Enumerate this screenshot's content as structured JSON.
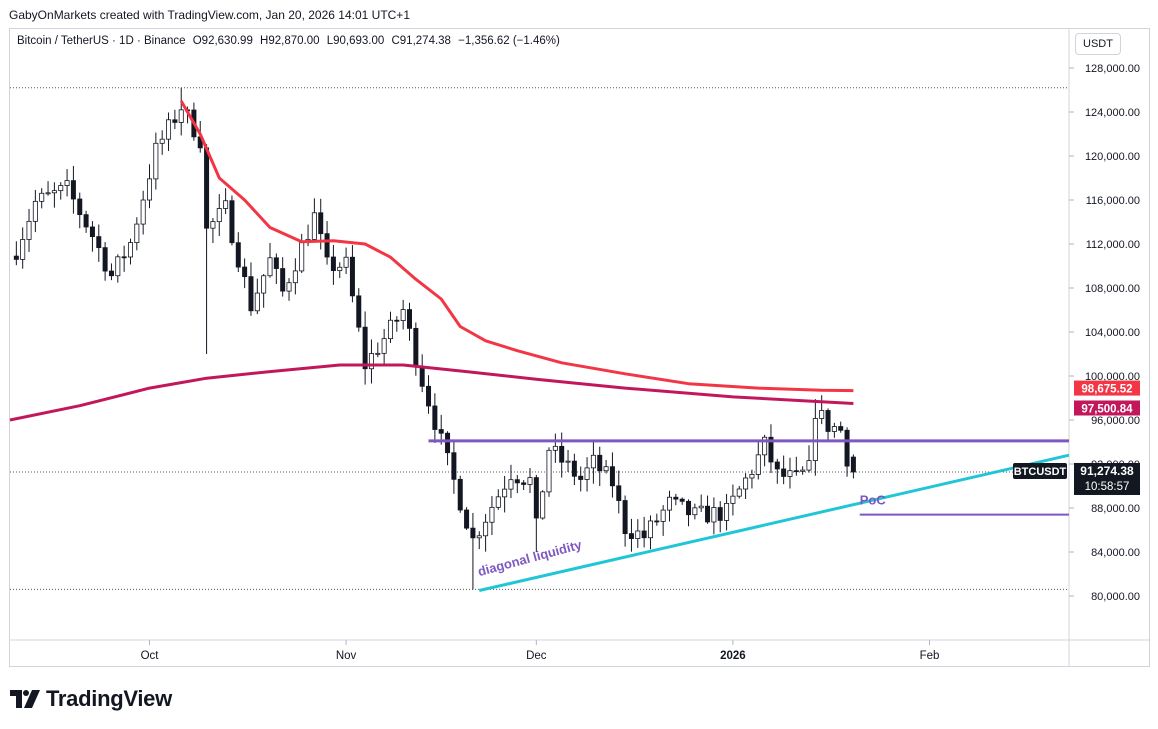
{
  "header": {
    "credit": "GabyOnMarkets created with TradingView.com, Jan 20, 2026 14:01 UTC+1",
    "symbol_line": "Bitcoin / TetherUS · 1D · Binance",
    "open": "O92,630.99",
    "high": "H92,870.00",
    "low": "L90,693.00",
    "close": "C91,274.38",
    "change": "−1,356.62 (−1.46%)"
  },
  "toolbar": {
    "currency": "USDT"
  },
  "brand": {
    "name": "TradingView"
  },
  "colors": {
    "up": "#131722",
    "down": "#131722",
    "up_body": "#ffffff",
    "ema_fast": "#f23645",
    "ema_slow": "#c2185b",
    "level": "#7e57c2",
    "trend": "#20c5d6",
    "annotation": "#7e57c2",
    "price_tag": "#131722"
  },
  "chart_data": {
    "type": "candlestick",
    "y_axis": {
      "min": 76000,
      "max": 130000,
      "ticks": [
        128000,
        124000,
        120000,
        116000,
        112000,
        108000,
        104000,
        100000,
        96000,
        92000,
        88000,
        84000,
        80000
      ],
      "tick_labels": [
        "128,000.00",
        "124,000.00",
        "120,000.00",
        "116,000.00",
        "112,000.00",
        "108,000.00",
        "104,000.00",
        "100,000.00",
        "96,000.00",
        "92,000.00",
        "88,000.00",
        "84,000.00",
        "80,000.00"
      ]
    },
    "x_axis": {
      "start": "2025-09-09",
      "end": "2026-02-23",
      "ticks": [
        {
          "date": "2025-10-01",
          "label": "Oct",
          "bold": false
        },
        {
          "date": "2025-11-01",
          "label": "Nov",
          "bold": false
        },
        {
          "date": "2025-12-01",
          "label": "Dec",
          "bold": false
        },
        {
          "date": "2026-01-01",
          "label": "2026",
          "bold": true
        },
        {
          "date": "2026-02-01",
          "label": "Feb",
          "bold": false
        }
      ]
    },
    "candles_start": "2025-09-10",
    "close_points": [
      [
        "2025-09-10",
        111500
      ],
      [
        "2025-09-13",
        115800
      ],
      [
        "2025-09-18",
        117000
      ],
      [
        "2025-09-22",
        112800
      ],
      [
        "2025-09-25",
        109100
      ],
      [
        "2025-09-28",
        112100
      ],
      [
        "2025-10-02",
        120500
      ],
      [
        "2025-10-06",
        124500
      ],
      [
        "2025-10-09",
        121500
      ],
      [
        "2025-10-10",
        113200
      ],
      [
        "2025-10-13",
        115200
      ],
      [
        "2025-10-17",
        106400
      ],
      [
        "2025-10-20",
        110500
      ],
      [
        "2025-10-22",
        107600
      ],
      [
        "2025-10-27",
        114500
      ],
      [
        "2025-10-29",
        110000
      ],
      [
        "2025-11-01",
        110100
      ],
      [
        "2025-11-04",
        101000
      ],
      [
        "2025-11-07",
        103400
      ],
      [
        "2025-11-10",
        106000
      ],
      [
        "2025-11-13",
        99600
      ],
      [
        "2025-11-17",
        92200
      ],
      [
        "2025-11-21",
        85100
      ],
      [
        "2025-11-24",
        88200
      ],
      [
        "2025-11-27",
        91200
      ],
      [
        "2025-11-30",
        90500
      ],
      [
        "2025-12-01",
        86200
      ],
      [
        "2025-12-03",
        93400
      ],
      [
        "2025-12-08",
        90600
      ],
      [
        "2025-12-10",
        92100
      ],
      [
        "2025-12-13",
        90300
      ],
      [
        "2025-12-15",
        86200
      ],
      [
        "2025-12-18",
        85400
      ],
      [
        "2025-12-22",
        88400
      ],
      [
        "2025-12-26",
        87300
      ],
      [
        "2025-12-31",
        87600
      ],
      [
        "2026-01-04",
        91500
      ],
      [
        "2026-01-06",
        93700
      ],
      [
        "2026-01-08",
        91000
      ],
      [
        "2026-01-11",
        90600
      ],
      [
        "2026-01-13",
        91500
      ],
      [
        "2026-01-14",
        96900
      ],
      [
        "2026-01-16",
        95500
      ],
      [
        "2026-01-18",
        95100
      ],
      [
        "2026-01-19",
        92630
      ],
      [
        "2026-01-20",
        91274
      ]
    ],
    "last_candle": {
      "open": 92630.99,
      "high": 92870.0,
      "low": 90693.0,
      "close": 91274.38
    },
    "indicators": [
      {
        "points": [
          [
            "2025-10-06",
            125000
          ],
          [
            "2025-10-09",
            122000
          ],
          [
            "2025-10-12",
            118000
          ],
          [
            "2025-10-16",
            116000
          ],
          [
            "2025-10-20",
            113500
          ],
          [
            "2025-10-25",
            112200
          ],
          [
            "2025-10-30",
            112300
          ],
          [
            "2025-11-04",
            112000
          ],
          [
            "2025-11-08",
            110800
          ],
          [
            "2025-11-12",
            108800
          ],
          [
            "2025-11-16",
            107000
          ],
          [
            "2025-11-19",
            104500
          ],
          [
            "2025-11-23",
            103200
          ],
          [
            "2025-11-28",
            102300
          ],
          [
            "2025-12-05",
            101200
          ],
          [
            "2025-12-15",
            100200
          ],
          [
            "2025-12-25",
            99300
          ],
          [
            "2026-01-05",
            98900
          ],
          [
            "2026-01-15",
            98700
          ],
          [
            "2026-01-20",
            98675.52
          ]
        ],
        "last_value": "98,675.52"
      },
      {
        "points": [
          [
            "2025-09-09",
            96000
          ],
          [
            "2025-09-20",
            97300
          ],
          [
            "2025-10-01",
            98900
          ],
          [
            "2025-10-10",
            99800
          ],
          [
            "2025-10-20",
            100400
          ],
          [
            "2025-10-31",
            101000
          ],
          [
            "2025-11-10",
            101000
          ],
          [
            "2025-11-20",
            100400
          ],
          [
            "2025-12-01",
            99700
          ],
          [
            "2025-12-15",
            98900
          ],
          [
            "2026-01-01",
            98100
          ],
          [
            "2026-01-20",
            97500.84
          ]
        ],
        "last_value": "97,500.84"
      }
    ],
    "drawings": [
      {
        "kind": "dotted_level",
        "price": 126200
      },
      {
        "kind": "dotted_level",
        "price": 80600
      },
      {
        "kind": "dotted_level",
        "price": 91274.38
      },
      {
        "kind": "level",
        "from": "2025-11-14",
        "to": "2026-02-23",
        "price": 94100
      },
      {
        "kind": "trendline",
        "from": [
          "2025-11-22",
          80500
        ],
        "to": [
          "2026-02-23",
          92800
        ]
      },
      {
        "kind": "level",
        "from": "2026-01-21",
        "to": "2026-02-23",
        "price": 87400
      }
    ],
    "annotations": [
      {
        "text": "diagonal liquidity",
        "at": [
          "2025-11-22",
          81800
        ],
        "angle": -15
      },
      {
        "text": "PoC",
        "at": [
          "2026-01-21",
          88300
        ],
        "angle": 0
      }
    ],
    "price_tag": {
      "symbol": "BTCUSDT",
      "price": "91,274.38",
      "countdown": "10:58:57",
      "value": 91274.38
    }
  }
}
